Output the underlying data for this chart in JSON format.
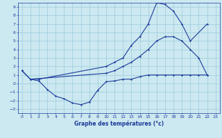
{
  "background_color": "#cce8f0",
  "grid_color": "#99ccdd",
  "line_color": "#1a3a9a",
  "xlabel": "Graphe des températures (°c)",
  "xlim": [
    -0.5,
    23.5
  ],
  "ylim": [
    -3.5,
    9.5
  ],
  "xticks": [
    0,
    1,
    2,
    3,
    4,
    5,
    6,
    7,
    8,
    9,
    10,
    11,
    12,
    13,
    14,
    15,
    16,
    17,
    18,
    19,
    20,
    21,
    22,
    23
  ],
  "yticks": [
    -3,
    -2,
    -1,
    0,
    1,
    2,
    3,
    4,
    5,
    6,
    7,
    8,
    9
  ],
  "series1_x": [
    0,
    1,
    2,
    10,
    11,
    12,
    13,
    14,
    15,
    16,
    17,
    18,
    19,
    20,
    22
  ],
  "series1_y": [
    1.5,
    0.5,
    0.5,
    2.0,
    2.5,
    3.0,
    4.5,
    5.5,
    7.0,
    9.5,
    9.3,
    8.5,
    7.0,
    5.0,
    7.0
  ],
  "series2_x": [
    0,
    1,
    10,
    11,
    12,
    13,
    14,
    15,
    16,
    17,
    18,
    19,
    20,
    21,
    22
  ],
  "series2_y": [
    1.5,
    0.5,
    1.2,
    1.5,
    2.0,
    2.5,
    3.2,
    4.0,
    5.0,
    5.5,
    5.5,
    5.0,
    4.0,
    3.0,
    1.0
  ],
  "series3_x": [
    1,
    2,
    3,
    4,
    5,
    6,
    7,
    8,
    9,
    10,
    11,
    12,
    13,
    14,
    15,
    16,
    17,
    18,
    19,
    20,
    21,
    22
  ],
  "series3_y": [
    0.5,
    0.3,
    -0.7,
    -1.5,
    -1.8,
    -2.3,
    -2.5,
    -2.2,
    -0.8,
    0.2,
    0.3,
    0.5,
    0.5,
    0.8,
    1.0,
    1.0,
    1.0,
    1.0,
    1.0,
    1.0,
    1.0,
    1.0
  ],
  "tick_fontsize": 4.5,
  "xlabel_fontsize": 5.5,
  "marker_size": 2.0,
  "line_width": 0.8
}
